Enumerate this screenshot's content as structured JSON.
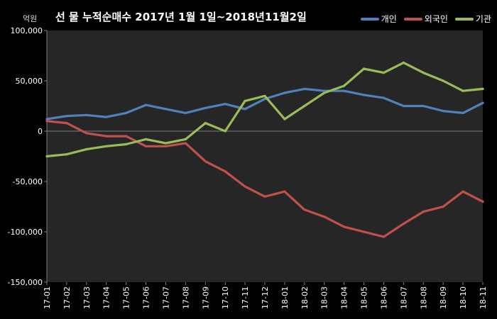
{
  "chart_data": {
    "type": "line",
    "title": "선 물 누적순매수 2017년 1월 1일~2018년11월2일",
    "unit_label": "억원",
    "ylim": [
      -150000,
      100000
    ],
    "yticks": [
      100000,
      50000,
      0,
      -50000,
      -100000,
      -150000
    ],
    "ytick_labels": [
      "100,000",
      "50,000",
      "0",
      "-50,000",
      "-100,000",
      "-150,000"
    ],
    "xticks": [
      "17-01",
      "17-02",
      "17-03",
      "17-04",
      "17-05",
      "17-06",
      "17-07",
      "17-08",
      "17-09",
      "17-10",
      "17-11",
      "17-12",
      "18-01",
      "18-02",
      "18-03",
      "18-04",
      "18-05",
      "18-06",
      "18-07",
      "18-08",
      "18-09",
      "18-10",
      "18-11"
    ],
    "x": [
      "17-01",
      "17-02",
      "17-03",
      "17-04",
      "17-05",
      "17-06",
      "17-07",
      "17-08",
      "17-09",
      "17-10",
      "17-11",
      "17-12",
      "18-01",
      "18-02",
      "18-03",
      "18-04",
      "18-05",
      "18-06",
      "18-07",
      "18-08",
      "18-09",
      "18-10",
      "18-11"
    ],
    "legend_position": "top-right",
    "grid": false,
    "colors": {
      "background": "#000000",
      "plot_background": "#262626",
      "axis": "#7f7f7f",
      "text": "#ffffff"
    },
    "series": [
      {
        "name": "개인",
        "color": "#4f81bd",
        "values": [
          12000,
          15000,
          16000,
          14000,
          18000,
          26000,
          22000,
          18000,
          23000,
          27000,
          22000,
          32000,
          38000,
          42000,
          40000,
          40000,
          36000,
          33000,
          25000,
          25000,
          20000,
          18000,
          28000
        ]
      },
      {
        "name": "외국인",
        "color": "#c0504d",
        "values": [
          10000,
          8000,
          -2000,
          -5000,
          -5000,
          -15000,
          -15000,
          -12000,
          -30000,
          -40000,
          -55000,
          -65000,
          -60000,
          -78000,
          -85000,
          -95000,
          -100000,
          -105000,
          -92000,
          -80000,
          -75000,
          -60000,
          -70000
        ]
      },
      {
        "name": "기관",
        "color": "#9bbb59",
        "values": [
          -25000,
          -23000,
          -18000,
          -15000,
          -13000,
          -8000,
          -12000,
          -8000,
          8000,
          0,
          30000,
          35000,
          12000,
          25000,
          38000,
          45000,
          62000,
          58000,
          68000,
          58000,
          50000,
          40000,
          42000
        ]
      }
    ]
  }
}
